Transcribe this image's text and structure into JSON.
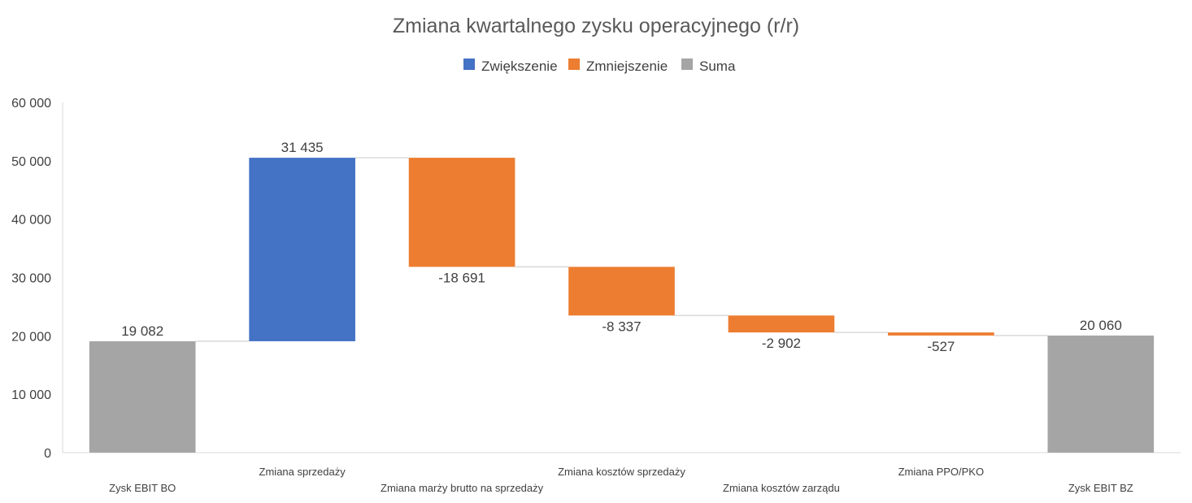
{
  "chart_data": {
    "type": "waterfall",
    "title": "Zmiana kwartalnego zysku operacyjnego (r/r)",
    "legend": [
      {
        "label": "Zwiększenie",
        "color": "#4472C4"
      },
      {
        "label": "Zmniejszenie",
        "color": "#ED7D31"
      },
      {
        "label": "Suma",
        "color": "#A5A5A5"
      }
    ],
    "legend_position": "top",
    "ylim": [
      0,
      60000
    ],
    "yticks": [
      0,
      10000,
      20000,
      30000,
      40000,
      50000,
      60000
    ],
    "ytick_labels": [
      "0",
      "10 000",
      "20 000",
      "30 000",
      "40 000",
      "50 000",
      "60 000"
    ],
    "grid": false,
    "categories": [
      "Zysk EBIT BO",
      "Zmiana sprzedaży",
      "Zmiana marży brutto na sprzedaży",
      "Zmiana kosztów sprzedaży",
      "Zmiana kosztów zarządu",
      "Zmiana PPO/PKO",
      "Zysk EBIT BZ"
    ],
    "values": [
      19082,
      31435,
      -18691,
      -8337,
      -2902,
      -527,
      20060
    ],
    "kinds": [
      "total",
      "increase",
      "decrease",
      "decrease",
      "decrease",
      "decrease",
      "total"
    ],
    "value_labels": [
      "19 082",
      "31 435",
      "-18 691",
      "-8 337",
      "-2 902",
      "-527",
      "20 060"
    ]
  }
}
